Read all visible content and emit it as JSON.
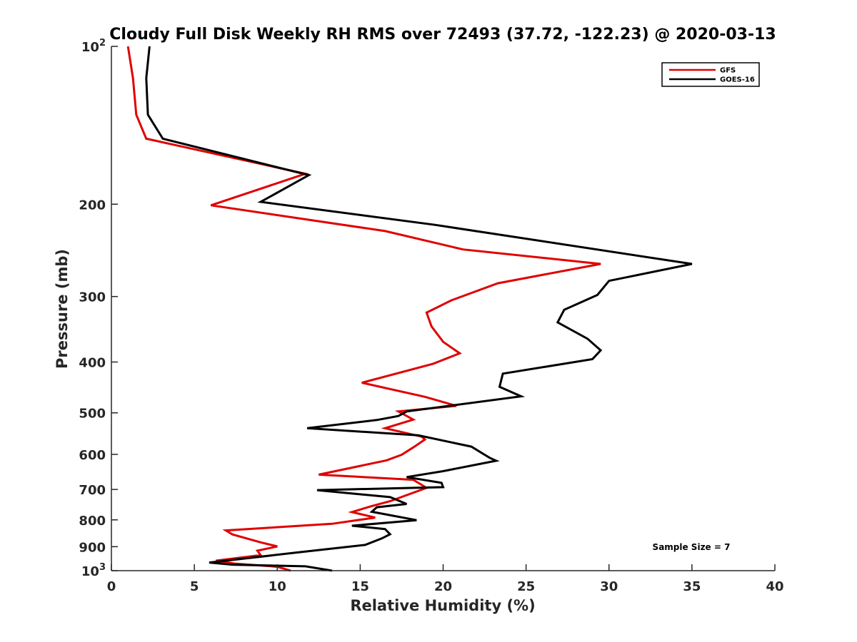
{
  "chart_data": {
    "type": "line",
    "title": "Cloudy Full Disk Weekly RH RMS over 72493 (37.72, -122.23) @ 2020-03-13",
    "xlabel": "Relative Humidity (%)",
    "ylabel": "Pressure (mb)",
    "xlim": [
      0,
      40
    ],
    "ylim": [
      100,
      1000
    ],
    "yscale": "log",
    "y_reversed": true,
    "grid": false,
    "legend_position": "top-right",
    "x_ticks": [
      "0",
      "5",
      "10",
      "15",
      "20",
      "25",
      "30",
      "35",
      "40"
    ],
    "y_ticks": [
      {
        "value": 100,
        "label": "10",
        "sup": "2"
      },
      {
        "value": 200,
        "label": "200",
        "sup": ""
      },
      {
        "value": 300,
        "label": "300",
        "sup": ""
      },
      {
        "value": 400,
        "label": "400",
        "sup": ""
      },
      {
        "value": 500,
        "label": "500",
        "sup": ""
      },
      {
        "value": 600,
        "label": "600",
        "sup": ""
      },
      {
        "value": 700,
        "label": "700",
        "sup": ""
      },
      {
        "value": 800,
        "label": "800",
        "sup": ""
      },
      {
        "value": 900,
        "label": "900",
        "sup": ""
      },
      {
        "value": 1000,
        "label": "10",
        "sup": "3"
      }
    ],
    "series": [
      {
        "name": "GFS",
        "color": "#e00000",
        "points": [
          [
            1.0,
            100
          ],
          [
            1.3,
            115
          ],
          [
            1.5,
            135
          ],
          [
            2.1,
            150
          ],
          [
            11.7,
            175
          ],
          [
            6.0,
            201
          ],
          [
            16.5,
            225
          ],
          [
            21.2,
            244
          ],
          [
            29.5,
            260
          ],
          [
            23.3,
            283
          ],
          [
            20.5,
            305
          ],
          [
            19.0,
            322
          ],
          [
            19.3,
            342
          ],
          [
            20.0,
            366
          ],
          [
            21.0,
            385
          ],
          [
            19.4,
            403
          ],
          [
            15.1,
            438
          ],
          [
            18.9,
            466
          ],
          [
            20.8,
            485
          ],
          [
            17.3,
            497
          ],
          [
            18.2,
            515
          ],
          [
            16.5,
            535
          ],
          [
            18.7,
            555
          ],
          [
            18.9,
            562
          ],
          [
            18.2,
            582
          ],
          [
            17.5,
            601
          ],
          [
            16.6,
            616
          ],
          [
            12.5,
            656
          ],
          [
            18.2,
            671
          ],
          [
            19.0,
            695
          ],
          [
            16.8,
            737
          ],
          [
            15.7,
            753
          ],
          [
            14.5,
            773
          ],
          [
            15.9,
            792
          ],
          [
            13.3,
            814
          ],
          [
            6.9,
            838
          ],
          [
            7.3,
            853
          ],
          [
            9.0,
            883
          ],
          [
            10.0,
            899
          ],
          [
            8.8,
            916
          ],
          [
            9.0,
            934
          ],
          [
            6.3,
            957
          ],
          [
            7.5,
            970
          ],
          [
            10.0,
            983
          ],
          [
            10.8,
            1000
          ]
        ]
      },
      {
        "name": "GOES-16",
        "color": "#000000",
        "points": [
          [
            2.3,
            100
          ],
          [
            2.1,
            115
          ],
          [
            2.2,
            135
          ],
          [
            3.1,
            150
          ],
          [
            11.9,
            176
          ],
          [
            9.0,
            198
          ],
          [
            19.5,
            219
          ],
          [
            35.0,
            260
          ],
          [
            30.0,
            280
          ],
          [
            29.3,
            298
          ],
          [
            27.3,
            318
          ],
          [
            26.9,
            336
          ],
          [
            28.7,
            361
          ],
          [
            29.5,
            380
          ],
          [
            29.0,
            395
          ],
          [
            23.6,
            421
          ],
          [
            23.4,
            446
          ],
          [
            24.7,
            465
          ],
          [
            17.8,
            497
          ],
          [
            17.3,
            507
          ],
          [
            16.0,
            516
          ],
          [
            11.8,
            535
          ],
          [
            18.5,
            552
          ],
          [
            21.7,
            580
          ],
          [
            22.8,
            609
          ],
          [
            23.2,
            617
          ],
          [
            20.0,
            646
          ],
          [
            17.8,
            663
          ],
          [
            19.9,
            680
          ],
          [
            20.0,
            693
          ],
          [
            12.4,
            702
          ],
          [
            16.8,
            724
          ],
          [
            17.8,
            746
          ],
          [
            16.0,
            757
          ],
          [
            15.7,
            772
          ],
          [
            18.4,
            801
          ],
          [
            14.5,
            821
          ],
          [
            16.5,
            833
          ],
          [
            16.8,
            852
          ],
          [
            16.3,
            868
          ],
          [
            15.3,
            893
          ],
          [
            11.1,
            924
          ],
          [
            5.9,
            965
          ],
          [
            7.3,
            974
          ],
          [
            11.7,
            981
          ],
          [
            13.3,
            1000
          ]
        ]
      }
    ],
    "annotation": "Sample Size = 7"
  }
}
